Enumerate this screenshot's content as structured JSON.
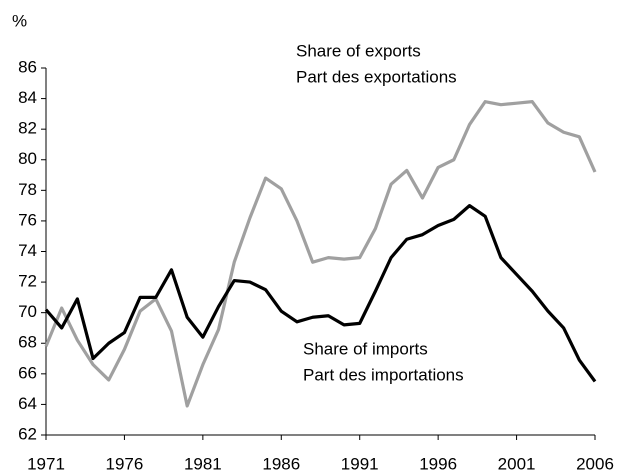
{
  "chart_data": {
    "type": "line",
    "y_label": "%",
    "x": [
      1971,
      1972,
      1973,
      1974,
      1975,
      1976,
      1977,
      1978,
      1979,
      1980,
      1981,
      1982,
      1983,
      1984,
      1985,
      1986,
      1987,
      1988,
      1989,
      1990,
      1991,
      1992,
      1993,
      1994,
      1995,
      1996,
      1997,
      1998,
      1999,
      2000,
      2001,
      2002,
      2003,
      2004,
      2005,
      2006
    ],
    "series": [
      {
        "name": "Share of exports",
        "name_fr": "Part des exportations",
        "color": "#a0a0a0",
        "values": [
          67.8,
          70.3,
          68.2,
          66.6,
          65.6,
          67.6,
          70.1,
          70.9,
          68.8,
          63.9,
          66.6,
          68.9,
          73.3,
          76.2,
          78.8,
          78.1,
          76.0,
          73.3,
          73.6,
          73.5,
          73.6,
          75.5,
          78.4,
          79.3,
          77.5,
          79.5,
          80.0,
          82.3,
          83.8,
          83.6,
          83.7,
          83.8,
          82.4,
          81.8,
          81.5,
          79.2
        ]
      },
      {
        "name": "Share of imports",
        "name_fr": "Part des importations",
        "color": "#000000",
        "values": [
          70.2,
          69.0,
          70.9,
          67.0,
          68.0,
          68.7,
          71.0,
          71.0,
          72.8,
          69.7,
          68.4,
          70.4,
          72.1,
          72.0,
          71.5,
          70.1,
          69.4,
          69.7,
          69.8,
          69.2,
          69.3,
          71.4,
          73.6,
          74.8,
          75.1,
          75.7,
          76.1,
          77.0,
          76.3,
          73.6,
          72.5,
          71.4,
          70.1,
          69.0,
          66.9,
          65.5
        ]
      }
    ],
    "xlim": [
      1971,
      2006
    ],
    "xticks": [
      1971,
      1976,
      1981,
      1986,
      1991,
      1996,
      2001,
      2006
    ],
    "ylim": [
      62,
      86
    ],
    "yticks": [
      62,
      64,
      66,
      68,
      70,
      72,
      74,
      76,
      78,
      80,
      82,
      84,
      86
    ],
    "grid": false
  }
}
